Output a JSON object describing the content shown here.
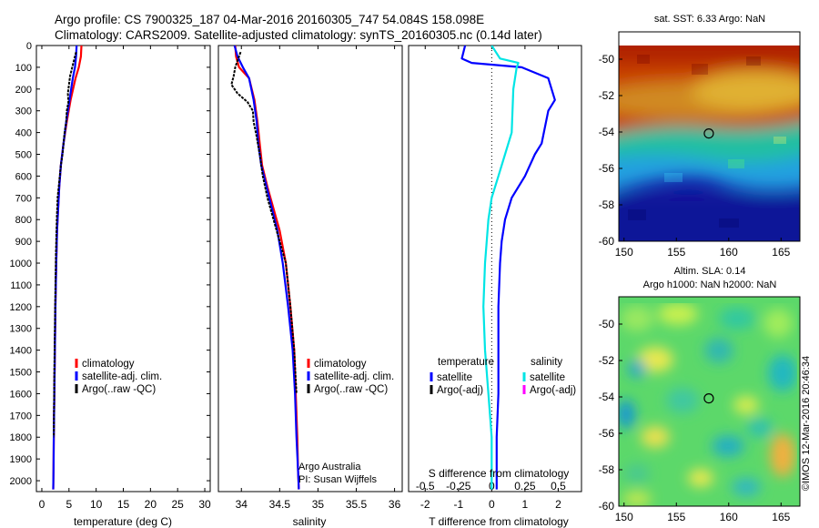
{
  "header": {
    "line1": "Argo profile: CS 7900325_187 04-Mar-2016 20160305_747 54.084S 158.098E",
    "line2": "Climatology: CARS2009. Satellite-adjusted climatology: synTS_20160305.nc (0.14d later)"
  },
  "credit": "©IMOS 12-Mar-2016 20:46:34",
  "colors": {
    "climatology": "#ff0000",
    "satellite": "#0000ff",
    "argo": "#000000",
    "sal_satellite": "#00e5e5",
    "sal_argo": "#ff00ff"
  },
  "chart_data": [
    {
      "type": "line",
      "xlabel": "temperature (deg C)",
      "xlim": [
        -1,
        31
      ],
      "xticks": [
        0,
        5,
        10,
        15,
        20,
        25,
        30
      ],
      "ylim": [
        2050,
        0
      ],
      "yticks": [
        0,
        100,
        200,
        300,
        400,
        500,
        600,
        700,
        800,
        900,
        1000,
        1100,
        1200,
        1300,
        1400,
        1500,
        1600,
        1700,
        1800,
        1900,
        2000
      ],
      "legend": [
        "climatology",
        "satellite-adj. clim.",
        "Argo(..raw -QC)"
      ],
      "series": [
        {
          "name": "climatology",
          "color": "#ff0000",
          "x": [
            7.3,
            7.2,
            6.8,
            6.2,
            5.3,
            4.6,
            4.0,
            3.5,
            3.2,
            3.0,
            2.8,
            2.65,
            2.5,
            2.4,
            2.3,
            2.2,
            2.15,
            2.1
          ],
          "y": [
            0,
            50,
            100,
            150,
            250,
            350,
            450,
            550,
            650,
            750,
            850,
            1000,
            1200,
            1400,
            1600,
            1800,
            1950,
            2040
          ]
        },
        {
          "name": "satellite-adj. clim.",
          "color": "#0000ff",
          "x": [
            6.4,
            6.3,
            6.1,
            5.7,
            5.1,
            4.5,
            4.0,
            3.5,
            3.2,
            3.0,
            2.8,
            2.65,
            2.5,
            2.4,
            2.3,
            2.2,
            2.15,
            2.1
          ],
          "y": [
            0,
            50,
            100,
            150,
            250,
            350,
            450,
            550,
            650,
            750,
            850,
            1000,
            1200,
            1400,
            1600,
            1800,
            1950,
            2040
          ]
        },
        {
          "name": "Argo(..raw -QC)",
          "color": "#000000",
          "x": [
            6.3,
            5.9,
            5.6,
            5.2,
            5.0,
            4.8,
            4.9,
            4.6,
            4.5,
            4.2,
            4.0,
            3.8,
            3.5,
            3.3,
            3.1,
            2.9,
            2.75,
            2.6,
            2.45,
            2.3,
            2.2
          ],
          "y": [
            30,
            70,
            100,
            140,
            180,
            220,
            260,
            300,
            350,
            400,
            450,
            500,
            550,
            600,
            650,
            700,
            800,
            950,
            1200,
            1500,
            1800
          ]
        }
      ]
    },
    {
      "type": "line",
      "xlabel": "salinity",
      "xlim": [
        33.7,
        36.1
      ],
      "xticks": [
        34,
        34.5,
        35,
        35.5,
        36
      ],
      "xticklabels": [
        "34",
        "34.5",
        "35",
        "35.5",
        "36"
      ],
      "ylim": [
        2050,
        0
      ],
      "legend": [
        "climatology",
        "satellite-adj. clim.",
        "Argo(..raw -QC)"
      ],
      "annotations": [
        "Argo Australia",
        "PI: Susan Wijffels"
      ],
      "series": [
        {
          "name": "climatology",
          "color": "#ff0000",
          "x": [
            33.92,
            33.93,
            33.97,
            34.1,
            34.17,
            34.21,
            34.24,
            34.27,
            34.34,
            34.42,
            34.5,
            34.58,
            34.64,
            34.69,
            34.71,
            34.73,
            34.74,
            34.75
          ],
          "y": [
            0,
            50,
            100,
            150,
            250,
            350,
            450,
            550,
            650,
            750,
            850,
            1000,
            1200,
            1400,
            1600,
            1800,
            1950,
            2040
          ]
        },
        {
          "name": "satellite-adj. clim.",
          "color": "#0000ff",
          "x": [
            33.91,
            33.95,
            34.02,
            34.1,
            34.16,
            34.2,
            34.22,
            34.26,
            34.33,
            34.4,
            34.47,
            34.54,
            34.61,
            34.67,
            34.7,
            34.72,
            34.74,
            34.75
          ],
          "y": [
            0,
            50,
            100,
            150,
            250,
            350,
            450,
            550,
            650,
            750,
            850,
            1000,
            1200,
            1400,
            1600,
            1800,
            1950,
            2040
          ]
        },
        {
          "name": "Argo(..raw -QC)",
          "color": "#000000",
          "x": [
            33.99,
            33.95,
            33.92,
            33.9,
            33.87,
            33.95,
            34.08,
            34.15,
            34.16,
            34.2,
            34.24,
            34.28,
            34.34,
            34.42,
            34.5,
            34.58,
            34.64,
            34.69,
            34.72
          ],
          "y": [
            30,
            70,
            100,
            140,
            180,
            220,
            260,
            300,
            350,
            420,
            500,
            600,
            700,
            800,
            900,
            1000,
            1200,
            1400,
            1600
          ]
        }
      ]
    },
    {
      "type": "line",
      "xlabel": "T difference from climatology",
      "xlabel2": "S difference from climatology",
      "xlim": [
        -2.5,
        2.7
      ],
      "xticks": [
        -2,
        -1,
        0,
        1,
        2
      ],
      "xticks2": [
        -0.5,
        -0.25,
        0,
        0.25,
        0.5
      ],
      "xticklabels2": [
        "-0.5",
        "-0.25",
        "0",
        "0.25",
        "0.5"
      ],
      "ylim": [
        2050,
        0
      ],
      "legend_temperature_title": "temperature",
      "legend_salinity_title": "salinity",
      "legend_temperature": [
        "satellite",
        "Argo(-adj)"
      ],
      "legend_salinity": [
        "satellite",
        "Argo(-adj)"
      ],
      "series": [
        {
          "name": "satellite",
          "color": "#0000ff",
          "x": [
            -0.8,
            -0.9,
            -0.6,
            0.9,
            1.7,
            1.9,
            1.7,
            1.5,
            1.3,
            1.0,
            0.6,
            0.4,
            0.3,
            0.25,
            0.2,
            0.2,
            0.2,
            0.15,
            0.15,
            0.15
          ],
          "y": [
            0,
            60,
            80,
            100,
            150,
            250,
            300,
            450,
            500,
            600,
            700,
            800,
            900,
            1000,
            1200,
            1400,
            1600,
            1800,
            1950,
            2040
          ]
        },
        {
          "name": "satellite",
          "color": "#00e5e5",
          "x": [
            0.0,
            0.25,
            0.8,
            0.75,
            0.65,
            0.6,
            0.4,
            0.2,
            0.0,
            -0.1,
            -0.2,
            -0.25,
            -0.2,
            -0.1,
            -0.05,
            0.0,
            0.0,
            0.0,
            0.0
          ],
          "y": [
            0,
            60,
            80,
            100,
            200,
            400,
            500,
            600,
            700,
            800,
            1000,
            1200,
            1400,
            1600,
            1700,
            1800,
            1900,
            1950,
            2040
          ]
        }
      ]
    },
    {
      "type": "heatmap",
      "title": "sat. SST: 6.33  Argo: NaN",
      "xlim": [
        149.5,
        166.8
      ],
      "ylim": [
        -60,
        -48.5
      ],
      "xticks": [
        150,
        155,
        160,
        165
      ],
      "yticks": [
        -50,
        -52,
        -54,
        -56,
        -58,
        -60
      ],
      "marker": {
        "lon": 158.1,
        "lat": -54.08
      }
    },
    {
      "type": "heatmap",
      "title": "Altim. SLA: 0.14",
      "subtitle": "Argo h1000: NaN h2000: NaN",
      "xlim": [
        149.5,
        166.8
      ],
      "ylim": [
        -60,
        -48.5
      ],
      "xticks": [
        150,
        155,
        160,
        165
      ],
      "yticks": [
        -50,
        -52,
        -54,
        -56,
        -58,
        -60
      ],
      "marker": {
        "lon": 158.1,
        "lat": -54.08
      }
    }
  ]
}
